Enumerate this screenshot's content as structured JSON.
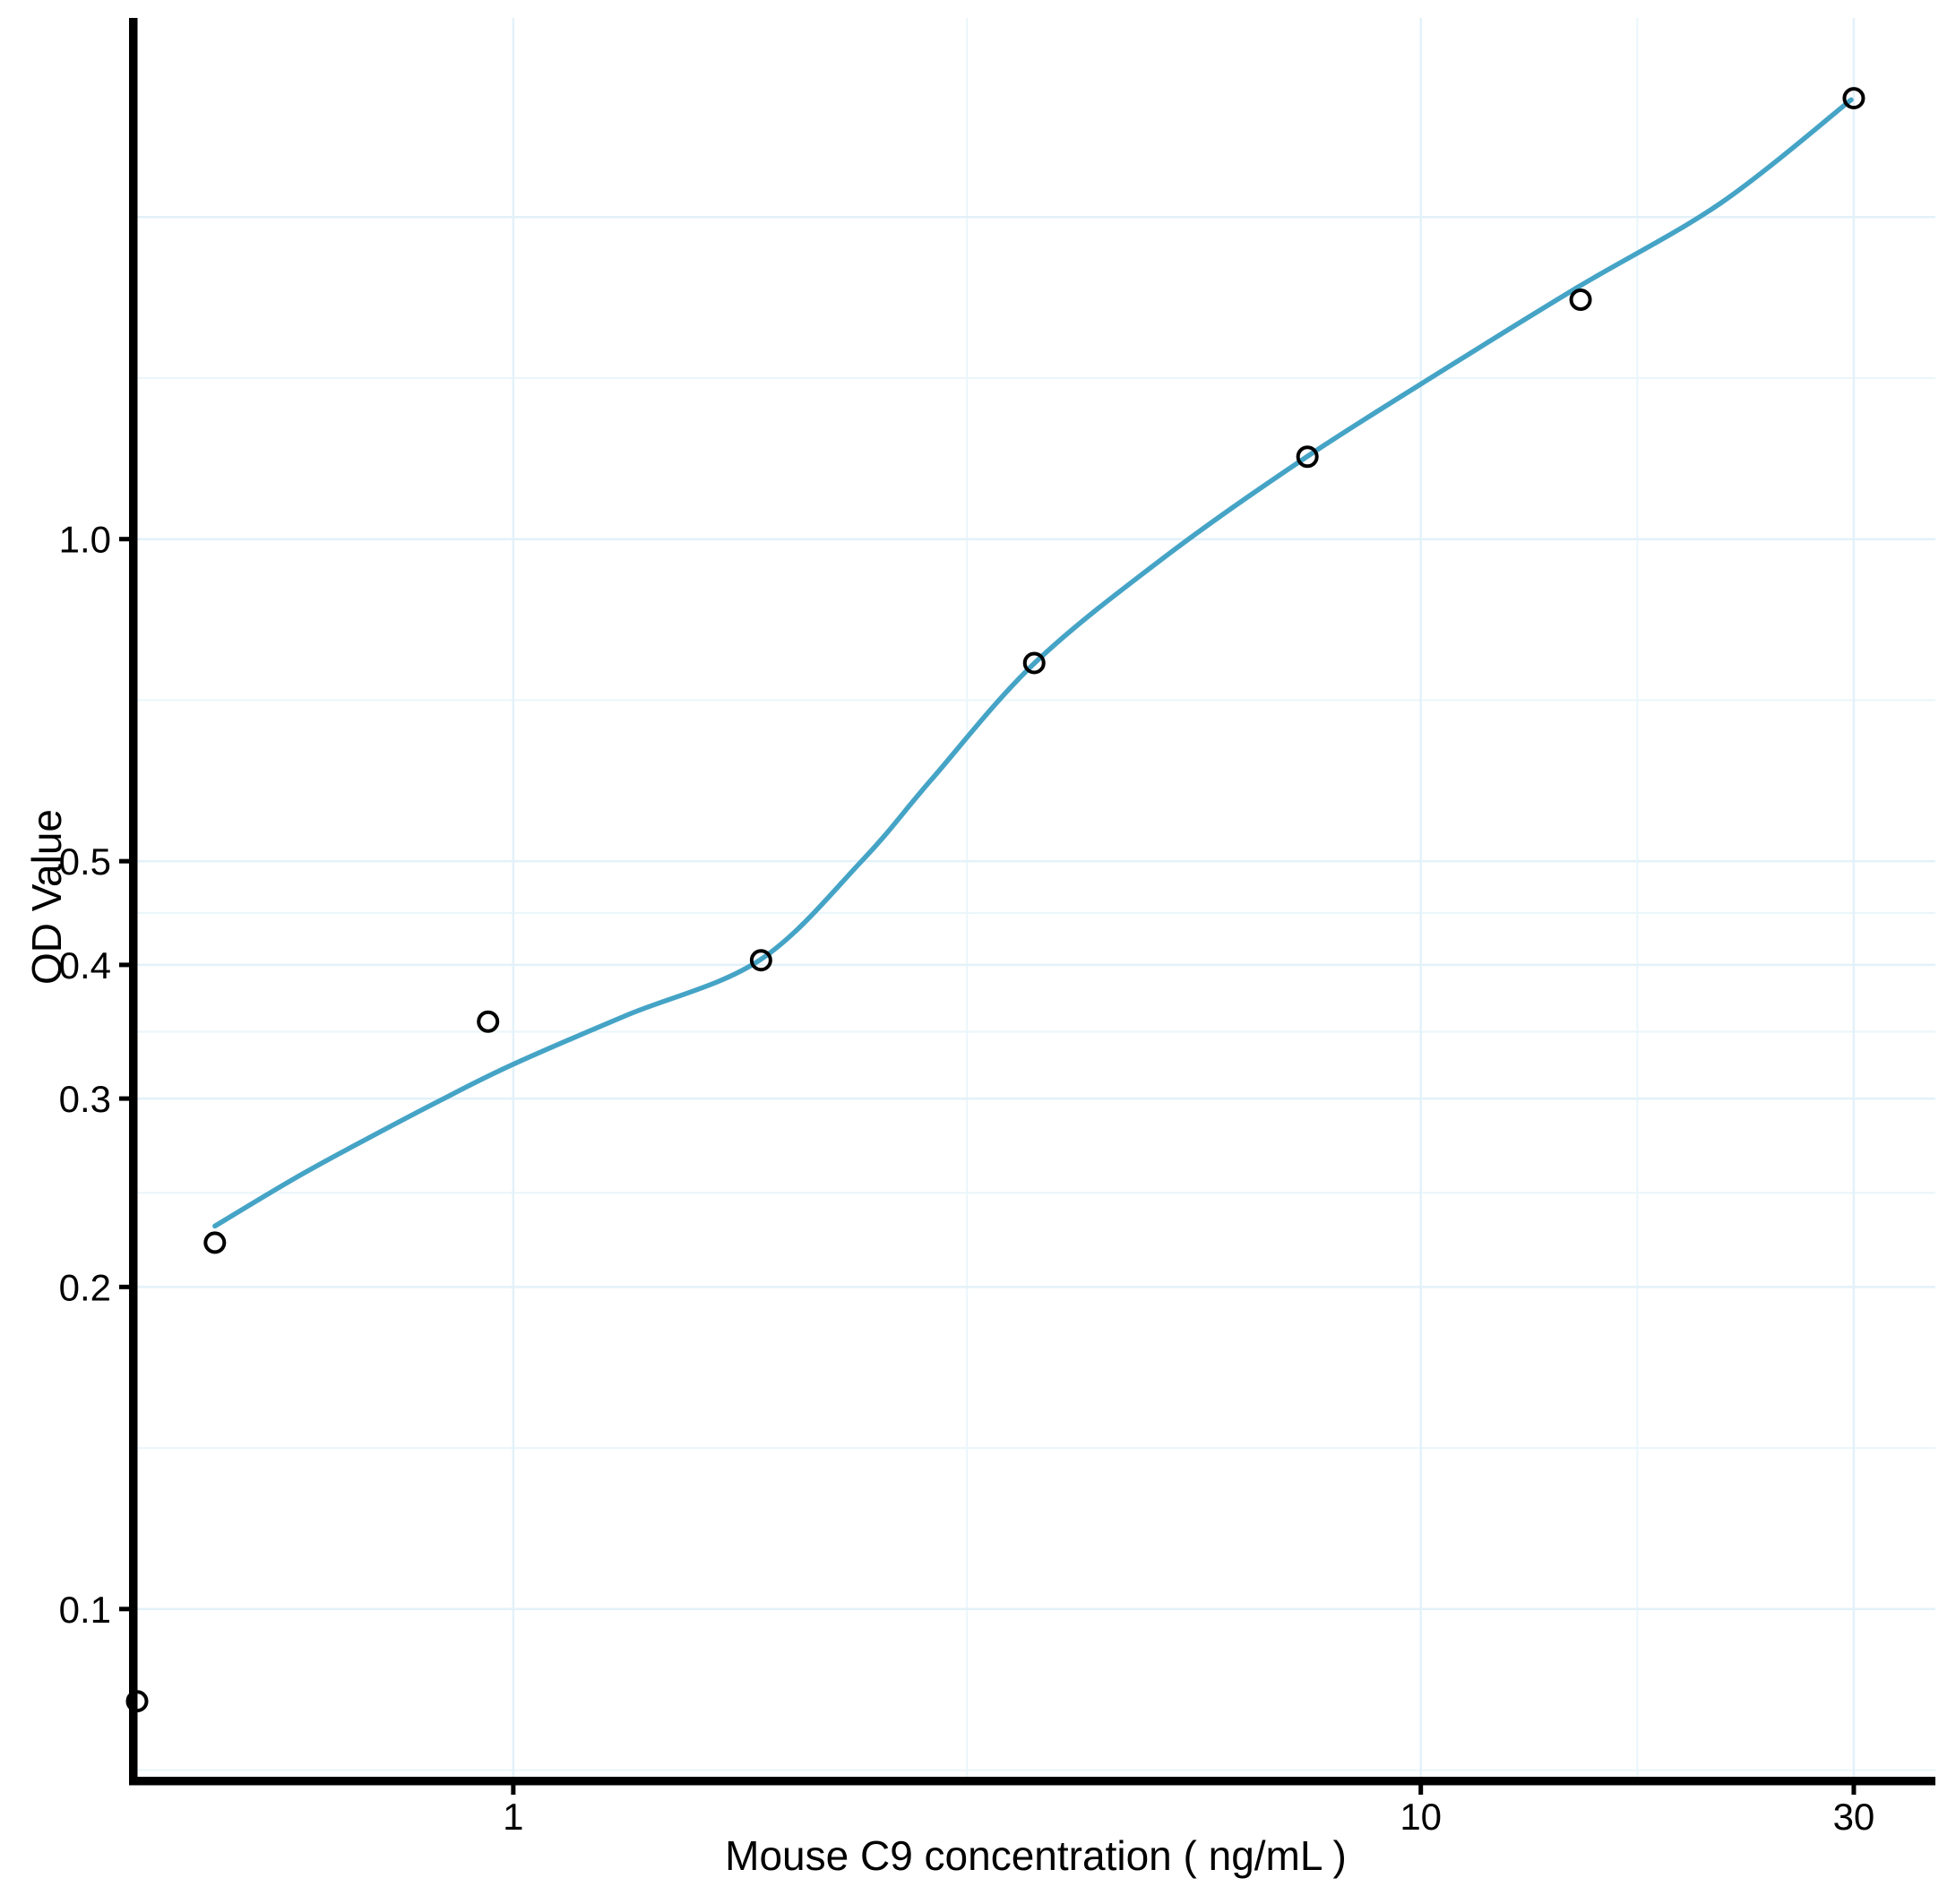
{
  "chart_data": {
    "type": "scatter",
    "title": "",
    "xlabel": "Mouse C9 concentration ( ng/mL )",
    "ylabel": "OD Value",
    "x_scale": "log10",
    "y_scale": "log10",
    "grid": true,
    "legend": null,
    "x_axis": {
      "range": [
        0.385,
        36.9
      ],
      "ticks": [
        {
          "value": 1,
          "label": "1"
        },
        {
          "value": 10,
          "label": "10"
        },
        {
          "value": 30,
          "label": "30"
        }
      ],
      "major_gridlines": [
        1,
        10,
        30
      ],
      "minor_gridlines": [
        3.1623,
        17.3205
      ]
    },
    "y_axis": {
      "range": [
        0.0697,
        3.07
      ],
      "ticks": [
        {
          "value": 1.0,
          "label": "1.0"
        },
        {
          "value": 0.5,
          "label": "0.5"
        },
        {
          "value": 0.4,
          "label": "0.4"
        },
        {
          "value": 0.3,
          "label": "0.3"
        },
        {
          "value": 0.2,
          "label": "0.2"
        },
        {
          "value": 0.1,
          "label": "0.1"
        }
      ],
      "major_gridlines": [
        0.1,
        0.2,
        0.3,
        0.4,
        0.5,
        1.0,
        2.0
      ],
      "minor_gridlines": [
        0.0707,
        0.1414,
        0.2449,
        0.3464,
        0.4472,
        0.7071,
        1.4142
      ]
    },
    "series": [
      {
        "name": "standard-points",
        "type": "points",
        "marker": "open-circle",
        "points": [
          {
            "x": 0.385,
            "y": 0.082,
            "note": "blank, clipped at y-axis"
          },
          {
            "x": 0.469,
            "y": 0.22
          },
          {
            "x": 0.938,
            "y": 0.354
          },
          {
            "x": 1.875,
            "y": 0.404
          },
          {
            "x": 3.75,
            "y": 0.766
          },
          {
            "x": 7.5,
            "y": 1.194
          },
          {
            "x": 15,
            "y": 1.674
          },
          {
            "x": 30,
            "y": 2.583
          }
        ]
      },
      {
        "name": "fitted-curve",
        "type": "line",
        "points": [
          [
            0.469,
            0.228
          ],
          [
            0.576,
            0.253
          ],
          [
            0.695,
            0.276
          ],
          [
            0.832,
            0.299
          ],
          [
            1.0,
            0.323
          ],
          [
            1.334,
            0.359
          ],
          [
            1.868,
            0.404
          ],
          [
            2.425,
            0.501
          ],
          [
            2.889,
            0.596
          ],
          [
            3.755,
            0.766
          ],
          [
            5.254,
            0.966
          ],
          [
            7.49,
            1.194
          ],
          [
            10.8,
            1.454
          ],
          [
            14.95,
            1.723
          ],
          [
            21.4,
            2.061
          ],
          [
            29.8,
            2.574
          ]
        ]
      }
    ]
  },
  "colors": {
    "curve": "#45a4c6",
    "grid_major": "#e3f1f9",
    "grid_minor": "#eaf6fb",
    "axis": "#000000",
    "point_outline": "#000000",
    "background": "#ffffff"
  }
}
